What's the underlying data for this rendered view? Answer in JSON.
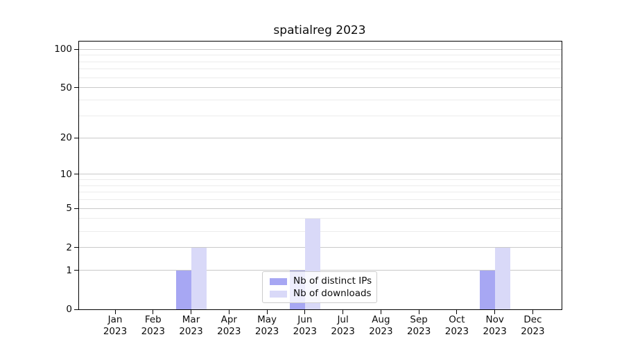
{
  "figure": {
    "title": "spatialreg 2023"
  },
  "chart_data": {
    "type": "bar",
    "title": "spatialreg 2023",
    "xlabel": "",
    "ylabel": "",
    "yscale": "log1p",
    "ylim": [
      0,
      115
    ],
    "yticks": [
      0,
      1,
      2,
      5,
      10,
      20,
      50,
      100
    ],
    "minor_gridlines": [
      3,
      4,
      6,
      7,
      8,
      9,
      30,
      40,
      60,
      70,
      80,
      90
    ],
    "grid": true,
    "legend_position": "lower center",
    "categories": [
      {
        "month": "Jan",
        "year": "2023"
      },
      {
        "month": "Feb",
        "year": "2023"
      },
      {
        "month": "Mar",
        "year": "2023"
      },
      {
        "month": "Apr",
        "year": "2023"
      },
      {
        "month": "May",
        "year": "2023"
      },
      {
        "month": "Jun",
        "year": "2023"
      },
      {
        "month": "Jul",
        "year": "2023"
      },
      {
        "month": "Aug",
        "year": "2023"
      },
      {
        "month": "Sep",
        "year": "2023"
      },
      {
        "month": "Oct",
        "year": "2023"
      },
      {
        "month": "Nov",
        "year": "2023"
      },
      {
        "month": "Dec",
        "year": "2023"
      }
    ],
    "series": [
      {
        "name": "Nb of distinct IPs",
        "color": "#a7a7f3",
        "values": [
          0,
          0,
          1,
          0,
          0,
          1,
          0,
          0,
          0,
          0,
          1,
          0
        ]
      },
      {
        "name": "Nb of downloads",
        "color": "#d9d9f8",
        "values": [
          0,
          0,
          2,
          0,
          0,
          4,
          0,
          0,
          0,
          0,
          2,
          0
        ]
      }
    ]
  },
  "colors": {
    "grid_major": "#c9c9c9",
    "grid_minor": "#ececec",
    "spine": "#000000",
    "background": "#ffffff",
    "legend_border": "#cccccc"
  }
}
